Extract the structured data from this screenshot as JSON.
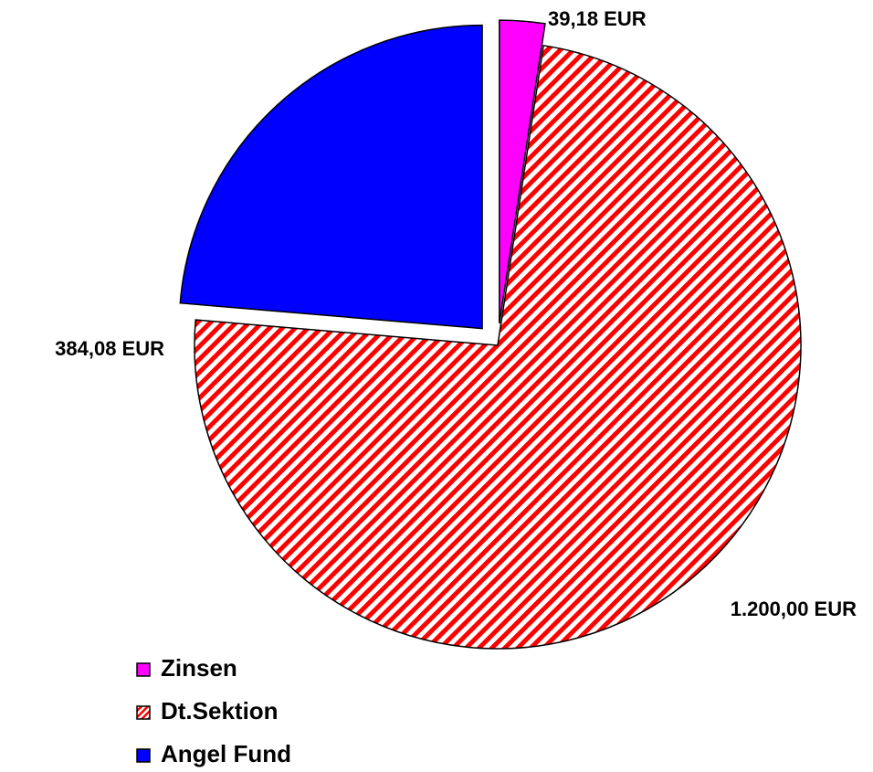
{
  "chart_data": {
    "type": "pie",
    "categories": [
      "Zinsen",
      "Dt.Sektion",
      "Angel Fund"
    ],
    "values": [
      39.18,
      1200.0,
      384.08
    ],
    "value_labels": [
      "39,18 EUR",
      "1.200,00 EUR",
      "384,08 EUR"
    ],
    "colors": [
      "#ff00ff",
      "#ff0000",
      "#0000ff"
    ],
    "hatched": [
      false,
      true,
      false
    ],
    "legend": "bottom-left"
  }
}
